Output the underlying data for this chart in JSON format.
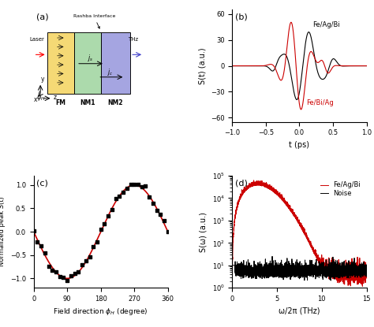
{
  "panel_b": {
    "title": "b",
    "xlabel": "t (ps)",
    "ylabel": "S(t) (a.u.)",
    "ylim": [
      -65,
      65
    ],
    "xlim": [
      -1.0,
      1.0
    ],
    "yticks": [
      -60,
      -30,
      0,
      30,
      60
    ],
    "xticks": [
      -1.0,
      -0.5,
      0.0,
      0.5,
      1.0
    ],
    "label_feagbi": "Fe/Ag/Bi",
    "label_febiag": "Fe/Bi/Ag",
    "color_feagbi": "#000000",
    "color_febiag": "#cc0000"
  },
  "panel_c": {
    "title": "c",
    "xlabel": "Field direction φ_H (degree)",
    "ylabel": "Normalized peak S(t)",
    "ylim": [
      -1.2,
      1.2
    ],
    "xlim": [
      0,
      360
    ],
    "yticks": [
      -1.0,
      -0.5,
      0.0,
      0.5,
      1.0
    ],
    "xticks": [
      0,
      90,
      180,
      270,
      360
    ],
    "color_data": "#000000",
    "color_fit": "#cc0000"
  },
  "panel_d": {
    "title": "d",
    "xlabel": "ω/2π (THz)",
    "ylabel": "S(ω) (a.u.)",
    "xlim": [
      0,
      15
    ],
    "xticks": [
      0,
      5,
      10,
      15
    ],
    "ylim_log": [
      1,
      100000
    ],
    "label_feagbi": "Fe/Ag/Bi",
    "label_noise": "Noise",
    "color_feagbi": "#cc0000",
    "color_noise": "#000000"
  }
}
